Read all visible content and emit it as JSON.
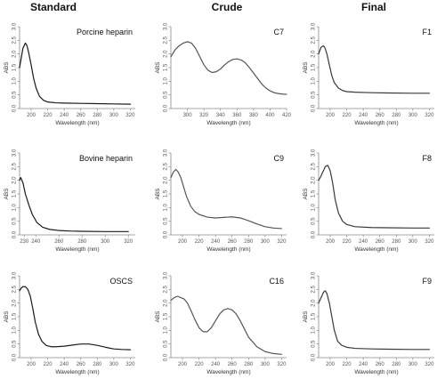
{
  "column_titles": [
    "Standard",
    "Crude",
    "Final"
  ],
  "colors": {
    "standard_line": "#1a1a1a",
    "crude_line": "#555555",
    "final_line": "#3a3a3a"
  },
  "chart_data": [
    {
      "type": "line",
      "label": "Porcine heparin",
      "xlabel": "Wavelength (nm)",
      "ylabel": "ABS",
      "xlim": [
        186,
        326
      ],
      "ylim": [
        0,
        3.0
      ],
      "xticks": [
        200,
        220,
        240,
        260,
        280,
        300,
        320
      ],
      "yticks": [
        0.0,
        0.5,
        1.0,
        1.5,
        2.0,
        2.5,
        3.0
      ],
      "x": [
        186,
        190,
        193,
        195,
        197,
        200,
        203,
        206,
        210,
        215,
        220,
        230,
        240,
        260,
        280,
        300,
        320
      ],
      "y": [
        1.5,
        2.2,
        2.4,
        2.3,
        2.05,
        1.6,
        1.1,
        0.75,
        0.45,
        0.3,
        0.24,
        0.21,
        0.2,
        0.19,
        0.18,
        0.17,
        0.16
      ]
    },
    {
      "type": "line",
      "label": "C7",
      "xlabel": "Wavelength (nm)",
      "ylabel": "ABS",
      "xlim": [
        280,
        420
      ],
      "ylim": [
        0,
        3.0
      ],
      "xticks": [
        300,
        320,
        340,
        360,
        380,
        400,
        420
      ],
      "yticks": [
        0.0,
        0.5,
        1.0,
        1.5,
        2.0,
        2.5,
        3.0
      ],
      "x": [
        280,
        285,
        290,
        295,
        300,
        305,
        310,
        315,
        320,
        325,
        330,
        335,
        340,
        345,
        350,
        355,
        360,
        365,
        370,
        375,
        380,
        385,
        390,
        395,
        400,
        405,
        410,
        415,
        420
      ],
      "y": [
        1.9,
        2.15,
        2.3,
        2.4,
        2.45,
        2.4,
        2.2,
        1.9,
        1.6,
        1.4,
        1.32,
        1.35,
        1.45,
        1.6,
        1.72,
        1.8,
        1.82,
        1.78,
        1.68,
        1.5,
        1.3,
        1.1,
        0.9,
        0.75,
        0.65,
        0.58,
        0.55,
        0.53,
        0.52
      ]
    },
    {
      "type": "line",
      "label": "F1",
      "xlabel": "Wavelength (nm)",
      "ylabel": "ABS",
      "xlim": [
        186,
        326
      ],
      "ylim": [
        0,
        3.0
      ],
      "xticks": [
        200,
        220,
        240,
        260,
        280,
        300,
        320
      ],
      "yticks": [
        0.0,
        0.5,
        1.0,
        1.5,
        2.0,
        2.5,
        3.0
      ],
      "x": [
        186,
        189,
        192,
        194,
        196,
        199,
        202,
        205,
        210,
        215,
        220,
        230,
        250,
        270,
        300,
        320
      ],
      "y": [
        2.0,
        2.25,
        2.3,
        2.2,
        2.0,
        1.6,
        1.2,
        0.95,
        0.75,
        0.66,
        0.62,
        0.6,
        0.58,
        0.57,
        0.56,
        0.56
      ]
    },
    {
      "type": "line",
      "label": "Bovine heparin",
      "xlabel": "Wavelength (nm)",
      "ylabel": "ABS",
      "xlim": [
        226,
        326
      ],
      "ylim": [
        0,
        3.0
      ],
      "xticks": [
        230,
        240,
        260,
        280,
        300,
        320
      ],
      "xtick_labels": [
        "230",
        "240",
        "260",
        "280",
        "300",
        "320"
      ],
      "yticks": [
        0.0,
        0.5,
        1.0,
        1.5,
        2.0,
        2.5,
        3.0
      ],
      "x": [
        226,
        227,
        229,
        231,
        234,
        237,
        241,
        246,
        252,
        260,
        270,
        280,
        300,
        320
      ],
      "y": [
        2.0,
        2.1,
        1.9,
        1.5,
        1.1,
        0.75,
        0.45,
        0.28,
        0.2,
        0.16,
        0.14,
        0.13,
        0.12,
        0.12
      ]
    },
    {
      "type": "line",
      "label": "C9",
      "xlabel": "Wavelength (nm)",
      "ylabel": "ABS",
      "xlim": [
        186,
        326
      ],
      "ylim": [
        0,
        3.0
      ],
      "xticks": [
        200,
        220,
        240,
        260,
        280,
        300,
        320
      ],
      "yticks": [
        0.0,
        0.5,
        1.0,
        1.5,
        2.0,
        2.5,
        3.0
      ],
      "x": [
        186,
        189,
        192,
        195,
        198,
        201,
        205,
        210,
        215,
        220,
        230,
        240,
        250,
        260,
        270,
        280,
        290,
        300,
        310,
        320
      ],
      "y": [
        2.1,
        2.3,
        2.4,
        2.3,
        2.1,
        1.8,
        1.4,
        1.05,
        0.85,
        0.75,
        0.65,
        0.62,
        0.64,
        0.66,
        0.62,
        0.52,
        0.4,
        0.3,
        0.25,
        0.23
      ]
    },
    {
      "type": "line",
      "label": "F8",
      "xlabel": "Wavelength (nm)",
      "ylabel": "ABS",
      "xlim": [
        186,
        326
      ],
      "ylim": [
        0,
        3.0
      ],
      "xticks": [
        200,
        220,
        240,
        260,
        280,
        300,
        320
      ],
      "yticks": [
        0.0,
        0.5,
        1.0,
        1.5,
        2.0,
        2.5,
        3.0
      ],
      "x": [
        186,
        188,
        191,
        194,
        197,
        200,
        203,
        206,
        210,
        215,
        220,
        230,
        250,
        270,
        300,
        320
      ],
      "y": [
        2.0,
        2.1,
        2.3,
        2.5,
        2.55,
        2.35,
        1.9,
        1.3,
        0.8,
        0.5,
        0.38,
        0.3,
        0.27,
        0.26,
        0.25,
        0.25
      ]
    },
    {
      "type": "line",
      "label": "OSCS",
      "xlabel": "Wavelength (nm)",
      "ylabel": "ABS",
      "xlim": [
        186,
        326
      ],
      "ylim": [
        0,
        3.0
      ],
      "xticks": [
        200,
        220,
        240,
        260,
        280,
        300,
        320
      ],
      "yticks": [
        0.0,
        0.5,
        1.0,
        1.5,
        2.0,
        2.5,
        3.0
      ],
      "x": [
        186,
        188,
        190,
        193,
        196,
        199,
        202,
        205,
        209,
        213,
        218,
        224,
        230,
        240,
        250,
        260,
        270,
        280,
        290,
        300,
        310,
        320
      ],
      "y": [
        2.45,
        2.55,
        2.6,
        2.6,
        2.5,
        2.25,
        1.8,
        1.3,
        0.85,
        0.6,
        0.45,
        0.4,
        0.4,
        0.42,
        0.46,
        0.5,
        0.5,
        0.45,
        0.38,
        0.32,
        0.3,
        0.29
      ]
    },
    {
      "type": "line",
      "label": "C16",
      "xlabel": "Wavelength (nm)",
      "ylabel": "ABS",
      "xlim": [
        186,
        326
      ],
      "ylim": [
        0,
        3.0
      ],
      "xticks": [
        200,
        220,
        240,
        260,
        280,
        300,
        320
      ],
      "yticks": [
        0.0,
        0.5,
        1.0,
        1.5,
        2.0,
        2.5,
        3.0
      ],
      "x": [
        186,
        190,
        194,
        198,
        202,
        206,
        210,
        215,
        220,
        225,
        230,
        235,
        240,
        245,
        250,
        255,
        260,
        265,
        270,
        275,
        280,
        290,
        300,
        310,
        320
      ],
      "y": [
        2.1,
        2.2,
        2.25,
        2.2,
        2.15,
        2.0,
        1.75,
        1.4,
        1.1,
        0.95,
        0.95,
        1.1,
        1.35,
        1.6,
        1.75,
        1.8,
        1.75,
        1.6,
        1.35,
        1.05,
        0.75,
        0.4,
        0.22,
        0.15,
        0.12
      ]
    },
    {
      "type": "line",
      "label": "F9",
      "xlabel": "Wavelength (nm)",
      "ylabel": "ABS",
      "xlim": [
        186,
        326
      ],
      "ylim": [
        0,
        3.0
      ],
      "xticks": [
        200,
        220,
        240,
        260,
        280,
        300,
        320
      ],
      "yticks": [
        0.0,
        0.5,
        1.0,
        1.5,
        2.0,
        2.5,
        3.0
      ],
      "x": [
        186,
        189,
        192,
        194,
        196,
        199,
        202,
        205,
        209,
        214,
        220,
        230,
        250,
        270,
        300,
        320
      ],
      "y": [
        2.0,
        2.2,
        2.4,
        2.45,
        2.35,
        2.0,
        1.5,
        1.0,
        0.6,
        0.45,
        0.38,
        0.34,
        0.32,
        0.31,
        0.3,
        0.3
      ]
    }
  ]
}
